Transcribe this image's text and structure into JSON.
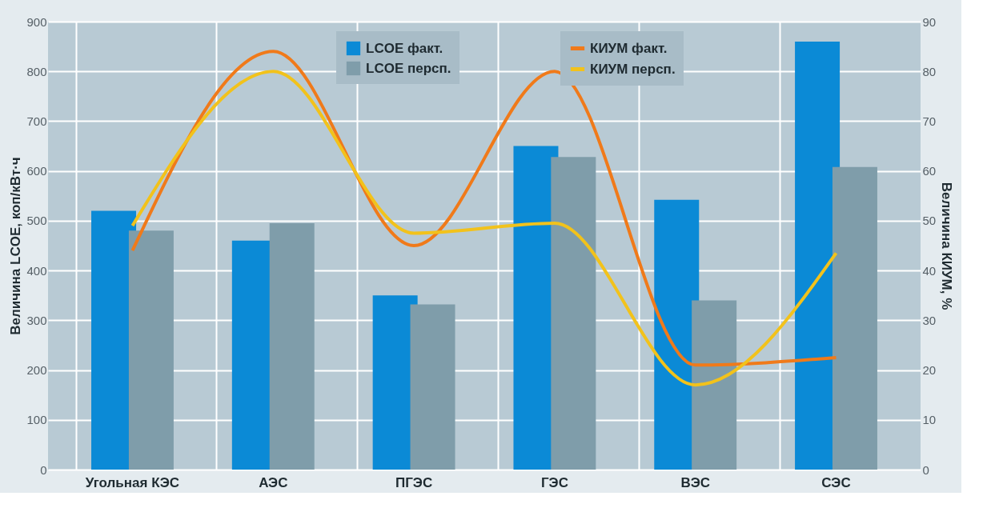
{
  "chart_data": {
    "type": "bar",
    "xlabel": null,
    "ylabel": "Величина LCOE, коп/кВт·ч",
    "y2label": "Величина КИУМ, %",
    "categories": [
      "Угольная КЭС",
      "АЭС",
      "ПГЭС",
      "ГЭС",
      "ВЭС",
      "СЭС"
    ],
    "series": [
      {
        "name": "LCOE факт.",
        "color": "#0b8ad6",
        "values": [
          520,
          460,
          350,
          650,
          542,
          860
        ]
      },
      {
        "name": "LCOE персп.",
        "color": "#7f9daa",
        "values": [
          480,
          495,
          332,
          628,
          340,
          608
        ]
      },
      {
        "name": "КИУМ факт.",
        "color": "#f07a1a",
        "type": "line",
        "axis": "y2",
        "values": [
          44,
          84,
          45,
          80,
          21,
          22.5
        ]
      },
      {
        "name": "КИУМ персп.",
        "color": "#f2c21b",
        "type": "line",
        "axis": "y2",
        "values": [
          49,
          80,
          47.5,
          49.5,
          17,
          43.5
        ]
      }
    ],
    "ylim": [
      0,
      900
    ],
    "yticks": [
      0,
      100,
      200,
      300,
      400,
      500,
      600,
      700,
      800,
      900
    ],
    "y2lim": [
      0,
      90
    ],
    "y2ticks": [
      0,
      10,
      20,
      30,
      40,
      50,
      60,
      70,
      80,
      90
    ],
    "grid": true,
    "legend": "top"
  }
}
